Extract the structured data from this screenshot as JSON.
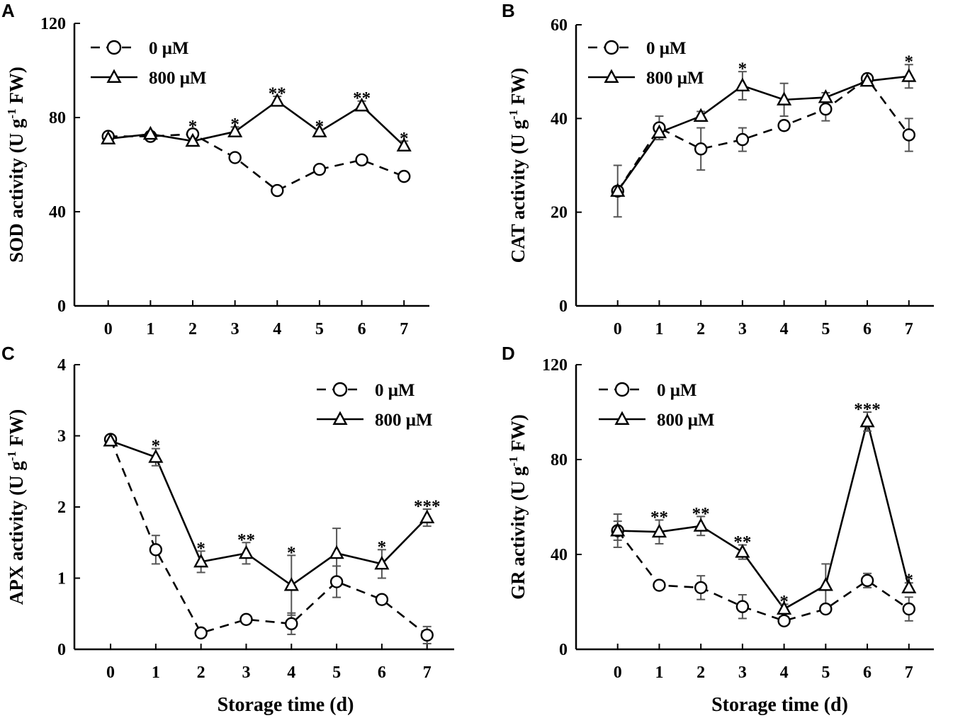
{
  "figure": {
    "xlabel_bottom": "Storage time (d)",
    "colors": {
      "line": "#000000",
      "errorbar": "#555555",
      "background": "#ffffff"
    }
  },
  "chart_data": [
    {
      "type": "line",
      "panel": "A",
      "ylabel": "SOD activity (U g-1 FW)",
      "ylabel_main": "SOD activity (U g",
      "ylabel_sup": "-1",
      "ylabel_end": " FW)",
      "xlabel": "",
      "x": [
        0,
        1,
        2,
        3,
        4,
        5,
        6,
        7
      ],
      "xlim": [
        -0.8,
        7.6
      ],
      "ylim": [
        0,
        120
      ],
      "yticks": [
        0,
        40,
        80,
        120
      ],
      "legend_position": "top-left",
      "series": [
        {
          "name": "0 μM",
          "marker": "circle",
          "dashed": true,
          "values": [
            72,
            72,
            73,
            63,
            49,
            58,
            62,
            55
          ],
          "errors": [
            1,
            1,
            2,
            1,
            1,
            1,
            1,
            1
          ]
        },
        {
          "name": "800 μM",
          "marker": "triangle",
          "dashed": false,
          "values": [
            71,
            73,
            70,
            74,
            87,
            74,
            85,
            68
          ],
          "errors": [
            1,
            1,
            2,
            2,
            2,
            1,
            2,
            2
          ]
        }
      ],
      "significance": [
        "",
        "",
        "*",
        "*",
        "**",
        "*",
        "**",
        "*"
      ]
    },
    {
      "type": "line",
      "panel": "B",
      "ylabel": "CAT activity (U g-1 FW)",
      "ylabel_main": "CAT activity (U g",
      "ylabel_sup": "-1",
      "ylabel_end": " FW)",
      "xlabel": "",
      "x": [
        0,
        1,
        2,
        3,
        4,
        5,
        6,
        7
      ],
      "xlim": [
        -1.0,
        7.6
      ],
      "ylim": [
        0,
        60
      ],
      "yticks": [
        0,
        20,
        40,
        60
      ],
      "legend_position": "top-left",
      "series": [
        {
          "name": "0 μM",
          "marker": "circle",
          "dashed": true,
          "values": [
            24.5,
            38,
            33.5,
            35.5,
            38.5,
            42,
            48.5,
            36.5
          ],
          "errors": [
            5.5,
            2.5,
            4.5,
            2.5,
            1,
            2.5,
            1,
            3.5
          ]
        },
        {
          "name": "800 μM",
          "marker": "triangle",
          "dashed": false,
          "values": [
            24.5,
            37,
            40.5,
            47,
            44,
            44.5,
            48,
            49
          ],
          "errors": [
            1,
            1.5,
            1,
            3,
            3.5,
            1,
            1,
            2.5
          ]
        }
      ],
      "significance": [
        "",
        "",
        "",
        "*",
        "",
        "",
        "",
        "*"
      ]
    },
    {
      "type": "line",
      "panel": "C",
      "ylabel": "APX activity (U g-1 FW)",
      "ylabel_main": "APX activity (U g",
      "ylabel_sup": "-1",
      "ylabel_end": " FW)",
      "xlabel": "Storage time (d)",
      "x": [
        0,
        1,
        2,
        3,
        4,
        5,
        6,
        7
      ],
      "xlim": [
        -0.8,
        7.6
      ],
      "ylim": [
        0,
        4
      ],
      "yticks": [
        0,
        1,
        2,
        3,
        4
      ],
      "legend_position": "top-right",
      "series": [
        {
          "name": "0 μM",
          "marker": "circle",
          "dashed": true,
          "values": [
            2.95,
            1.4,
            0.23,
            0.42,
            0.36,
            0.95,
            0.7,
            0.2
          ],
          "errors": [
            0.05,
            0.2,
            0.05,
            0.05,
            0.15,
            0.22,
            0.05,
            0.12
          ]
        },
        {
          "name": "800 μM",
          "marker": "triangle",
          "dashed": false,
          "values": [
            2.93,
            2.7,
            1.23,
            1.35,
            0.9,
            1.35,
            1.2,
            1.85
          ],
          "errors": [
            0.05,
            0.12,
            0.15,
            0.15,
            0.42,
            0.35,
            0.2,
            0.12
          ]
        }
      ],
      "significance": [
        "",
        "*",
        "*",
        "**",
        "*",
        "",
        "*",
        "***"
      ]
    },
    {
      "type": "line",
      "panel": "D",
      "ylabel": "GR activity (U g-1 FW)",
      "ylabel_main": "GR activity (U g",
      "ylabel_sup": "-1",
      "ylabel_end": " FW)",
      "xlabel": "Storage time (d)",
      "x": [
        0,
        1,
        2,
        3,
        4,
        5,
        6,
        7
      ],
      "xlim": [
        -1.0,
        7.6
      ],
      "ylim": [
        0,
        120
      ],
      "yticks": [
        0,
        40,
        80,
        120
      ],
      "legend_position": "top-left",
      "series": [
        {
          "name": "0 μM",
          "marker": "circle",
          "dashed": true,
          "values": [
            50,
            27,
            26,
            18,
            12,
            17,
            29,
            17
          ],
          "errors": [
            7,
            1,
            5,
            5,
            1,
            1,
            3,
            5
          ]
        },
        {
          "name": "800 μM",
          "marker": "triangle",
          "dashed": false,
          "values": [
            50,
            49.5,
            52,
            41,
            17,
            27,
            96,
            26
          ],
          "errors": [
            4,
            5,
            4,
            3,
            2,
            9,
            4,
            2
          ]
        }
      ],
      "significance": [
        "",
        "**",
        "**",
        "**",
        "*",
        "",
        "***",
        "*"
      ]
    }
  ]
}
